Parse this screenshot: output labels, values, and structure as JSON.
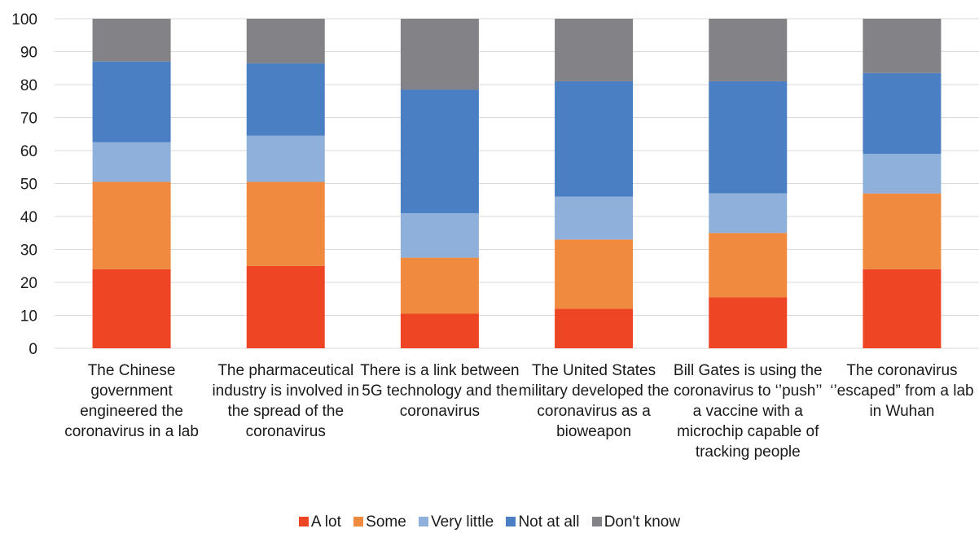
{
  "chart_data": {
    "type": "bar",
    "stacked": true,
    "title": "",
    "xlabel": "",
    "ylabel": "",
    "ylim": [
      0,
      100
    ],
    "yticks": [
      "0",
      "10",
      "20",
      "30",
      "40",
      "50",
      "60",
      "70",
      "80",
      "90",
      "100"
    ],
    "grid": true,
    "legend_position": "bottom",
    "categories": [
      "The Chinese government engineered the coronavirus in a lab",
      "The pharmaceutical industry is involved in the spread of the coronavirus",
      "There is a link between 5G technology and the coronavirus",
      "The United States military developed the coronavirus as a bioweapon",
      "Bill Gates is using the coronavirus to ‘’push’’ a vaccine with a microchip capable of tracking people",
      "The coronavirus ‘’escaped” from a lab in Wuhan"
    ],
    "series": [
      {
        "name": "A lot",
        "color": "#ee4524",
        "values": [
          24,
          25,
          10.5,
          12,
          15.5,
          24
        ]
      },
      {
        "name": "Some",
        "color": "#f08a3e",
        "values": [
          26.5,
          25.5,
          17,
          21,
          19.5,
          23
        ]
      },
      {
        "name": "Very little",
        "color": "#8eb0db",
        "values": [
          12,
          14,
          13.5,
          13,
          12,
          12
        ]
      },
      {
        "name": "Not at all",
        "color": "#4a7fc4",
        "values": [
          24.5,
          22,
          37.5,
          35,
          34,
          24.5
        ]
      },
      {
        "name": "Don't know",
        "color": "#838387",
        "values": [
          13,
          13.5,
          21.5,
          19,
          19,
          16.5
        ]
      }
    ]
  }
}
